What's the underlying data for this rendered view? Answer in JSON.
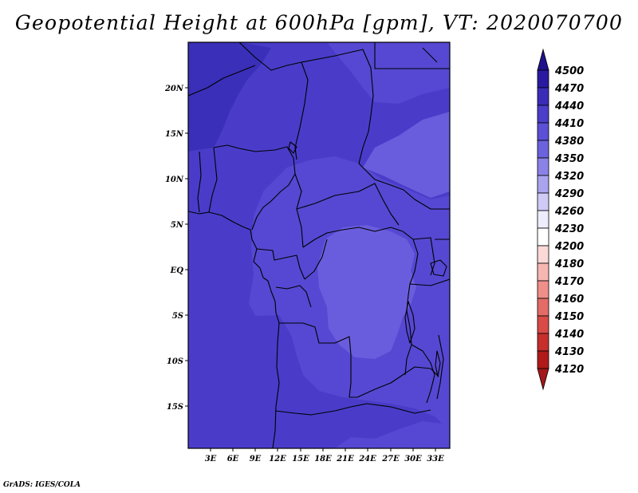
{
  "title": "Geopotential Height at 600hPa [gpm], VT: 2020070700",
  "footer": "GrADS: IGES/COLA",
  "map": {
    "lat_labels": [
      "20N",
      "15N",
      "10N",
      "5N",
      "EQ",
      "5S",
      "10S",
      "15S"
    ],
    "lon_labels": [
      "3E",
      "6E",
      "9E",
      "12E",
      "15E",
      "18E",
      "21E",
      "24E",
      "27E",
      "30E",
      "33E"
    ]
  },
  "colorbar": {
    "labels": [
      "4500",
      "4470",
      "4440",
      "4410",
      "4380",
      "4350",
      "4320",
      "4290",
      "4260",
      "4230",
      "4200",
      "4180",
      "4170",
      "4160",
      "4150",
      "4140",
      "4130",
      "4120"
    ],
    "colors": [
      "#1e118c",
      "#2a1aa1",
      "#3b2cb8",
      "#4b3ec8",
      "#5b50d6",
      "#6b62dd",
      "#8a82e6",
      "#aaa4ee",
      "#cfcbf6",
      "#eeedfb",
      "#ffffff",
      "#fbd9d7",
      "#f6b7b3",
      "#ee8f89",
      "#e36c66",
      "#d84b46",
      "#c62f2c",
      "#b01b1a",
      "#a31818"
    ]
  },
  "field_colors": {
    "c4470": "#3a2fb8",
    "c4440": "#4a3cc9",
    "c4410": "#5648d2",
    "c4380": "#6a5ddd"
  }
}
